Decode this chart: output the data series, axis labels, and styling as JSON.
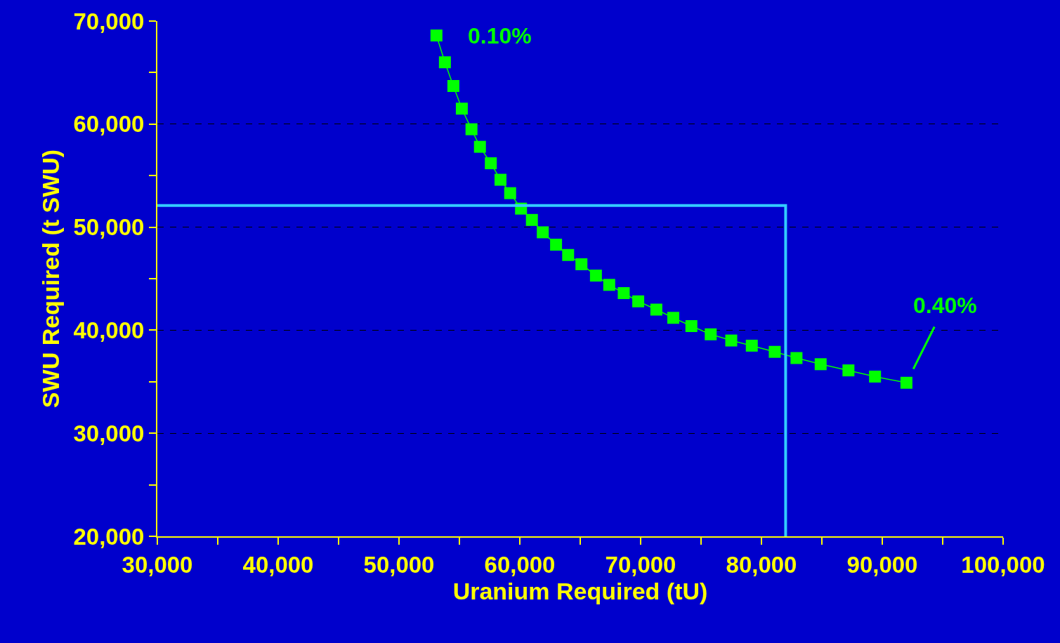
{
  "chart_data": {
    "type": "line",
    "xlabel": "Uranium Required (tU)",
    "ylabel": "SWU Required (t SWU)",
    "series": [
      {
        "color": "#00ff00",
        "marker": "square",
        "line_style": "solid",
        "x": [
          53100,
          53800,
          54500,
          55200,
          56000,
          56700,
          57600,
          58400,
          59200,
          60100,
          61000,
          61900,
          63000,
          64000,
          65100,
          66300,
          67400,
          68600,
          69800,
          71300,
          72700,
          74200,
          75800,
          77500,
          79200,
          81100,
          82900,
          84900,
          87200,
          89400,
          92000
        ],
        "values": [
          68600,
          66000,
          63700,
          61500,
          59500,
          57800,
          56200,
          54600,
          53300,
          51800,
          50700,
          49500,
          48300,
          47300,
          46400,
          45300,
          44400,
          43600,
          42800,
          42000,
          41200,
          40400,
          39600,
          39000,
          38500,
          37900,
          37300,
          36700,
          36100,
          35500,
          34900
        ]
      },
      {
        "color": "#33ccff",
        "marker": "none",
        "line_style": "solid",
        "x": [
          30000,
          82000,
          82000
        ],
        "values": [
          52100,
          52100,
          20000
        ]
      }
    ],
    "annotations": [
      {
        "text": "0.10%",
        "x": 53100,
        "y": 68600
      },
      {
        "text": "0.40%",
        "x": 92000,
        "y": 34900
      }
    ],
    "xlim": [
      30000,
      100000
    ],
    "ylim": [
      20000,
      70000
    ],
    "xticks": [
      {
        "value": 30000,
        "label": "30,000"
      },
      {
        "value": 35000,
        "label": null
      },
      {
        "value": 40000,
        "label": "40,000"
      },
      {
        "value": 45000,
        "label": null
      },
      {
        "value": 50000,
        "label": "50,000"
      },
      {
        "value": 55000,
        "label": null
      },
      {
        "value": 60000,
        "label": "60,000"
      },
      {
        "value": 65000,
        "label": null
      },
      {
        "value": 70000,
        "label": "70,000"
      },
      {
        "value": 75000,
        "label": null
      },
      {
        "value": 80000,
        "label": "80,000"
      },
      {
        "value": 85000,
        "label": null
      },
      {
        "value": 90000,
        "label": "90,000"
      },
      {
        "value": 95000,
        "label": null
      },
      {
        "value": 100000,
        "label": "100,000"
      }
    ],
    "yticks": [
      {
        "value": 20000,
        "label": "20,000"
      },
      {
        "value": 25000,
        "label": null
      },
      {
        "value": 30000,
        "label": "30,000"
      },
      {
        "value": 35000,
        "label": null
      },
      {
        "value": 40000,
        "label": "40,000"
      },
      {
        "value": 45000,
        "label": null
      },
      {
        "value": 50000,
        "label": "50,000"
      },
      {
        "value": 55000,
        "label": null
      },
      {
        "value": 60000,
        "label": "60,000"
      },
      {
        "value": 65000,
        "label": null
      },
      {
        "value": 70000,
        "label": "70,000"
      }
    ],
    "grid": "y"
  }
}
